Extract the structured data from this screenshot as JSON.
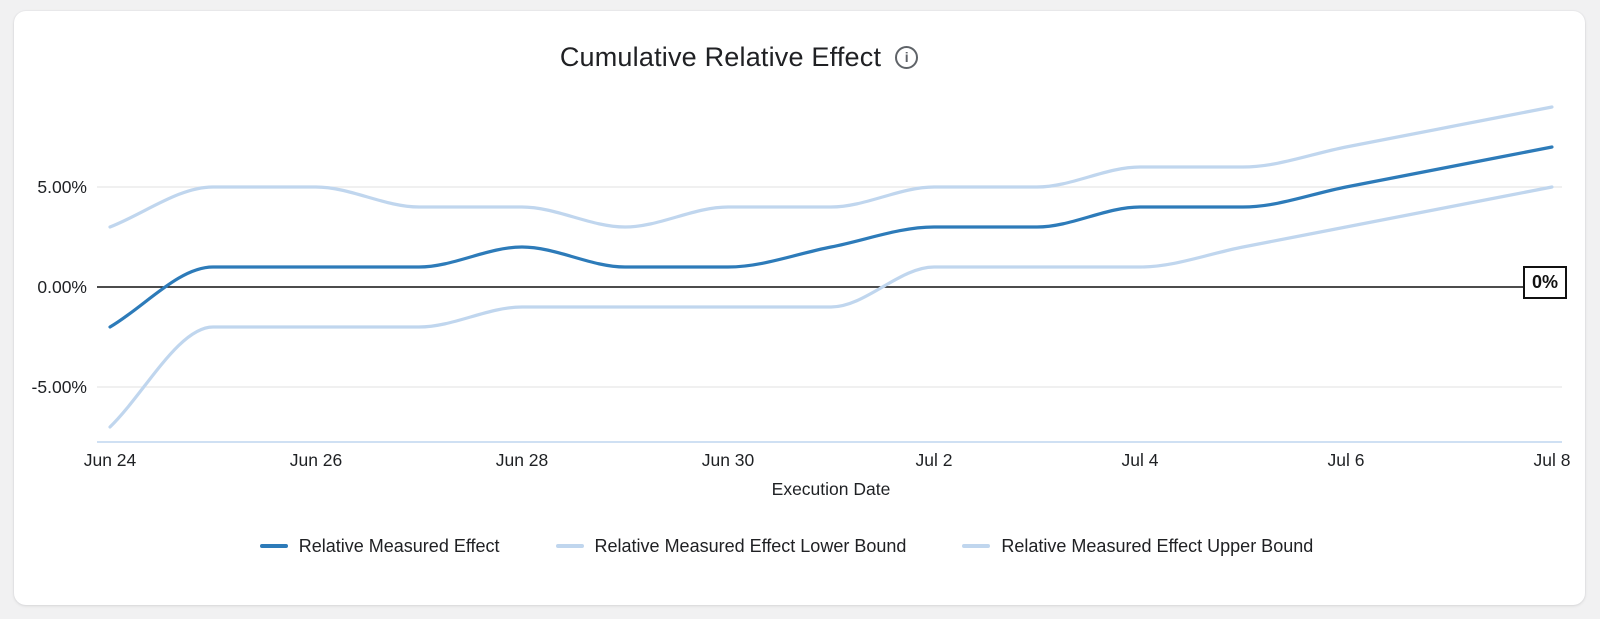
{
  "header": {
    "title": "Cumulative Relative Effect",
    "info_glyph": "i"
  },
  "colors": {
    "effect_line": "#2d7bb9",
    "bound_line": "#c0d6ee",
    "gridline": "#e7e7e7",
    "zero_line": "#111111",
    "axis_baseline": "#cfe0f3",
    "text": "#202124"
  },
  "chart_data": {
    "type": "line",
    "title": "Cumulative Relative Effect",
    "xlabel": "Execution Date",
    "ylabel": "",
    "unit": "percent",
    "grid": "horizontal",
    "legend_position": "bottom",
    "ylim": [
      -8.5,
      9.5
    ],
    "y_tick_values": [
      5,
      0,
      -5
    ],
    "y_tick_labels": [
      "5.00%",
      "0.00%",
      "-5.00%"
    ],
    "x_tick_labels": [
      "Jun 24",
      "Jun 26",
      "Jun 28",
      "Jun 30",
      "Jul 2",
      "Jul 4",
      "Jul 6",
      "Jul 8"
    ],
    "categories": [
      "Jun 24",
      "Jun 25",
      "Jun 26",
      "Jun 27",
      "Jun 28",
      "Jun 29",
      "Jun 30",
      "Jul 1",
      "Jul 2",
      "Jul 3",
      "Jul 4",
      "Jul 5",
      "Jul 6",
      "Jul 7",
      "Jul 8"
    ],
    "series": [
      {
        "name": "Relative Measured Effect",
        "color": "#2d7bb9",
        "values": [
          -2,
          1,
          1,
          1,
          2,
          1,
          1,
          2,
          3,
          3,
          4,
          4,
          5,
          6,
          7
        ]
      },
      {
        "name": "Relative Measured Effect Lower Bound",
        "color": "#c0d6ee",
        "values": [
          -7,
          -2,
          -2,
          -2,
          -1,
          -1,
          -1,
          -1,
          1,
          1,
          1,
          2,
          3,
          4,
          5
        ]
      },
      {
        "name": "Relative Measured Effect Upper Bound",
        "color": "#c0d6ee",
        "values": [
          3,
          5,
          5,
          4,
          4,
          3,
          4,
          4,
          5,
          5,
          6,
          6,
          7,
          8,
          9
        ]
      }
    ],
    "baseline": {
      "value": 0,
      "label": "0%"
    }
  }
}
